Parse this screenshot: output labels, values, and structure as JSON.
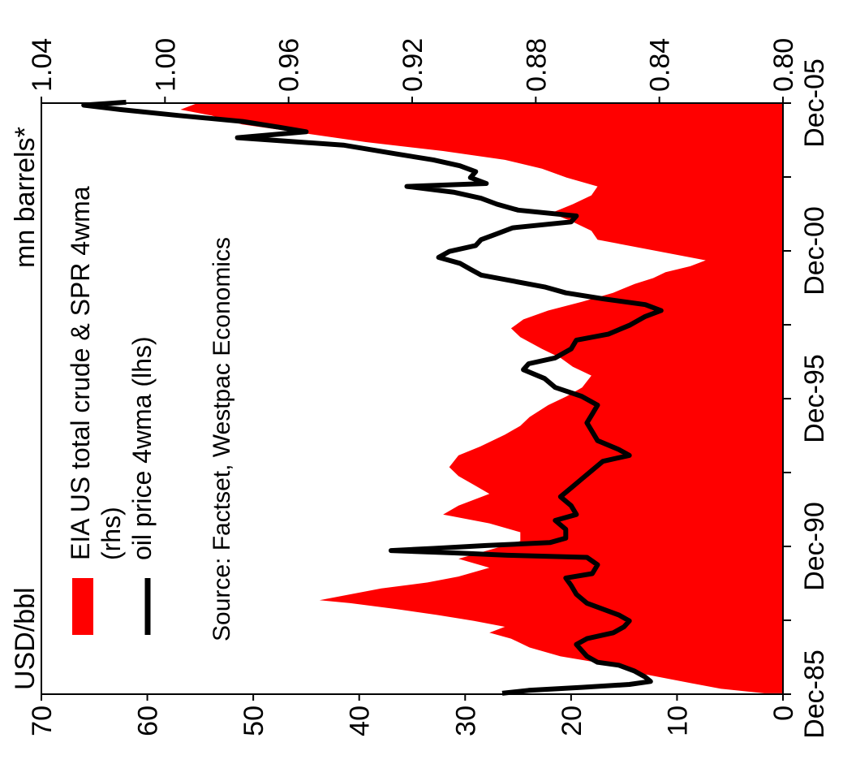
{
  "chart_data": {
    "type": "area",
    "orientation": "rotated 90 degrees clockwise (time axis runs top to bottom on the right edge)",
    "title": "",
    "left_axis_unit": "USD/bbl",
    "right_axis_unit": "mn barrels*",
    "left_axis": {
      "range": [
        0,
        70
      ],
      "ticks": [
        "0",
        "10",
        "20",
        "30",
        "40",
        "50",
        "60",
        "70"
      ]
    },
    "right_axis": {
      "range": [
        0.8,
        1.04
      ],
      "ticks": [
        "0.80",
        "0.84",
        "0.88",
        "0.92",
        "0.96",
        "1.00",
        "1.04"
      ]
    },
    "x_axis": {
      "range": [
        "1985-12",
        "2005-12"
      ],
      "ticks": [
        "Dec-85",
        "Dec-90",
        "Dec-95",
        "Dec-00",
        "Dec-05"
      ]
    },
    "legend": {
      "placement": "top-left",
      "entries": [
        "EIA US total crude & SPR 4wma",
        "(rhs)",
        "oil price 4wma (lhs)"
      ]
    },
    "source": "Source: Factset, Westpac Economics",
    "series": [
      {
        "name": "EIA US total crude & SPR 4wma (rhs)",
        "style": "filled-area",
        "color": "#ff0000",
        "axis": "right",
        "points": [
          [
            1985.95,
            0.806
          ],
          [
            1986.1,
            0.82
          ],
          [
            1986.3,
            0.83
          ],
          [
            1986.6,
            0.845
          ],
          [
            1986.9,
            0.855
          ],
          [
            1987.2,
            0.872
          ],
          [
            1987.5,
            0.882
          ],
          [
            1987.8,
            0.888
          ],
          [
            1988.0,
            0.895
          ],
          [
            1988.2,
            0.89
          ],
          [
            1988.4,
            0.9
          ],
          [
            1988.6,
            0.912
          ],
          [
            1988.8,
            0.925
          ],
          [
            1989.0,
            0.94
          ],
          [
            1989.1,
            0.95
          ],
          [
            1989.3,
            0.94
          ],
          [
            1989.5,
            0.93
          ],
          [
            1989.7,
            0.915
          ],
          [
            1989.9,
            0.905
          ],
          [
            1990.2,
            0.895
          ],
          [
            1990.5,
            0.905
          ],
          [
            1990.8,
            0.895
          ],
          [
            1991.1,
            0.885
          ],
          [
            1991.4,
            0.885
          ],
          [
            1991.7,
            0.895
          ],
          [
            1992.0,
            0.91
          ],
          [
            1992.3,
            0.905
          ],
          [
            1992.7,
            0.895
          ],
          [
            1993.0,
            0.9
          ],
          [
            1993.3,
            0.905
          ],
          [
            1993.6,
            0.908
          ],
          [
            1994.0,
            0.905
          ],
          [
            1994.3,
            0.898
          ],
          [
            1994.7,
            0.89
          ],
          [
            1995.0,
            0.885
          ],
          [
            1995.3,
            0.882
          ],
          [
            1995.7,
            0.876
          ],
          [
            1996.0,
            0.87
          ],
          [
            1996.3,
            0.865
          ],
          [
            1996.7,
            0.862
          ],
          [
            1997.0,
            0.868
          ],
          [
            1997.3,
            0.872
          ],
          [
            1997.6,
            0.878
          ],
          [
            1998.0,
            0.885
          ],
          [
            1998.3,
            0.888
          ],
          [
            1998.6,
            0.884
          ],
          [
            1998.9,
            0.876
          ],
          [
            1999.2,
            0.865
          ],
          [
            1999.5,
            0.855
          ],
          [
            1999.8,
            0.848
          ],
          [
            2000.0,
            0.842
          ],
          [
            2000.2,
            0.838
          ],
          [
            2000.4,
            0.83
          ],
          [
            2000.6,
            0.825
          ],
          [
            2000.8,
            0.835
          ],
          [
            2001.0,
            0.845
          ],
          [
            2001.3,
            0.86
          ],
          [
            2001.6,
            0.862
          ],
          [
            2001.9,
            0.868
          ],
          [
            2002.2,
            0.875
          ],
          [
            2002.5,
            0.868
          ],
          [
            2002.8,
            0.862
          ],
          [
            2003.1,
            0.86
          ],
          [
            2003.4,
            0.87
          ],
          [
            2003.7,
            0.878
          ],
          [
            2004.0,
            0.89
          ],
          [
            2004.3,
            0.91
          ],
          [
            2004.6,
            0.935
          ],
          [
            2004.9,
            0.955
          ],
          [
            2005.2,
            0.975
          ],
          [
            2005.5,
            0.985
          ],
          [
            2005.7,
            0.995
          ],
          [
            2005.9,
            0.99
          ]
        ]
      },
      {
        "name": "oil price 4wma (lhs)",
        "style": "line",
        "color": "#000000",
        "axis": "left",
        "points": [
          [
            1985.95,
            26.5
          ],
          [
            1986.05,
            24.0
          ],
          [
            1986.15,
            19.0
          ],
          [
            1986.25,
            14.5
          ],
          [
            1986.35,
            12.5
          ],
          [
            1986.5,
            13.0
          ],
          [
            1986.7,
            14.0
          ],
          [
            1986.9,
            15.5
          ],
          [
            1987.0,
            17.5
          ],
          [
            1987.2,
            18.5
          ],
          [
            1987.4,
            19.0
          ],
          [
            1987.6,
            19.5
          ],
          [
            1987.8,
            18.5
          ],
          [
            1988.0,
            16.0
          ],
          [
            1988.2,
            15.0
          ],
          [
            1988.4,
            14.5
          ],
          [
            1988.6,
            15.5
          ],
          [
            1988.8,
            17.0
          ],
          [
            1989.0,
            18.5
          ],
          [
            1989.3,
            19.5
          ],
          [
            1989.6,
            20.0
          ],
          [
            1989.85,
            20.5
          ],
          [
            1990.0,
            18.0
          ],
          [
            1990.3,
            17.5
          ],
          [
            1990.55,
            18.5
          ],
          [
            1990.62,
            26.0
          ],
          [
            1990.7,
            31.0
          ],
          [
            1990.78,
            37.0
          ],
          [
            1990.85,
            33.0
          ],
          [
            1990.95,
            28.0
          ],
          [
            1991.05,
            22.0
          ],
          [
            1991.2,
            20.5
          ],
          [
            1991.5,
            20.5
          ],
          [
            1991.8,
            21.5
          ],
          [
            1992.0,
            19.5
          ],
          [
            1992.3,
            20.0
          ],
          [
            1992.6,
            21.0
          ],
          [
            1992.9,
            20.0
          ],
          [
            1993.2,
            19.0
          ],
          [
            1993.5,
            18.0
          ],
          [
            1993.8,
            17.0
          ],
          [
            1994.0,
            14.5
          ],
          [
            1994.2,
            15.5
          ],
          [
            1994.5,
            17.5
          ],
          [
            1994.8,
            18.0
          ],
          [
            1995.1,
            18.5
          ],
          [
            1995.4,
            18.0
          ],
          [
            1995.7,
            17.5
          ],
          [
            1996.0,
            19.0
          ],
          [
            1996.3,
            21.5
          ],
          [
            1996.6,
            22.5
          ],
          [
            1996.9,
            24.5
          ],
          [
            1997.1,
            24.0
          ],
          [
            1997.3,
            21.5
          ],
          [
            1997.6,
            20.0
          ],
          [
            1997.9,
            19.5
          ],
          [
            1998.1,
            16.5
          ],
          [
            1998.4,
            14.5
          ],
          [
            1998.7,
            13.0
          ],
          [
            1998.9,
            11.5
          ],
          [
            1999.1,
            13.0
          ],
          [
            1999.3,
            17.0
          ],
          [
            1999.5,
            20.5
          ],
          [
            1999.7,
            22.5
          ],
          [
            1999.9,
            25.5
          ],
          [
            2000.1,
            28.5
          ],
          [
            2000.3,
            29.5
          ],
          [
            2000.5,
            30.5
          ],
          [
            2000.7,
            32.5
          ],
          [
            2000.9,
            31.5
          ],
          [
            2001.1,
            29.0
          ],
          [
            2001.3,
            28.5
          ],
          [
            2001.5,
            27.0
          ],
          [
            2001.7,
            25.5
          ],
          [
            2001.9,
            20.0
          ],
          [
            2002.1,
            19.5
          ],
          [
            2002.3,
            25.0
          ],
          [
            2002.5,
            27.0
          ],
          [
            2002.7,
            28.5
          ],
          [
            2002.9,
            31.0
          ],
          [
            2003.1,
            35.5
          ],
          [
            2003.2,
            28.0
          ],
          [
            2003.4,
            29.5
          ],
          [
            2003.6,
            29.0
          ],
          [
            2003.8,
            30.5
          ],
          [
            2004.0,
            33.0
          ],
          [
            2004.2,
            36.5
          ],
          [
            2004.5,
            41.5
          ],
          [
            2004.75,
            51.5
          ],
          [
            2004.95,
            45.0
          ],
          [
            2005.1,
            47.5
          ],
          [
            2005.3,
            51.0
          ],
          [
            2005.5,
            57.0
          ],
          [
            2005.7,
            62.5
          ],
          [
            2005.85,
            66.0
          ],
          [
            2005.95,
            62.0
          ]
        ]
      }
    ]
  }
}
